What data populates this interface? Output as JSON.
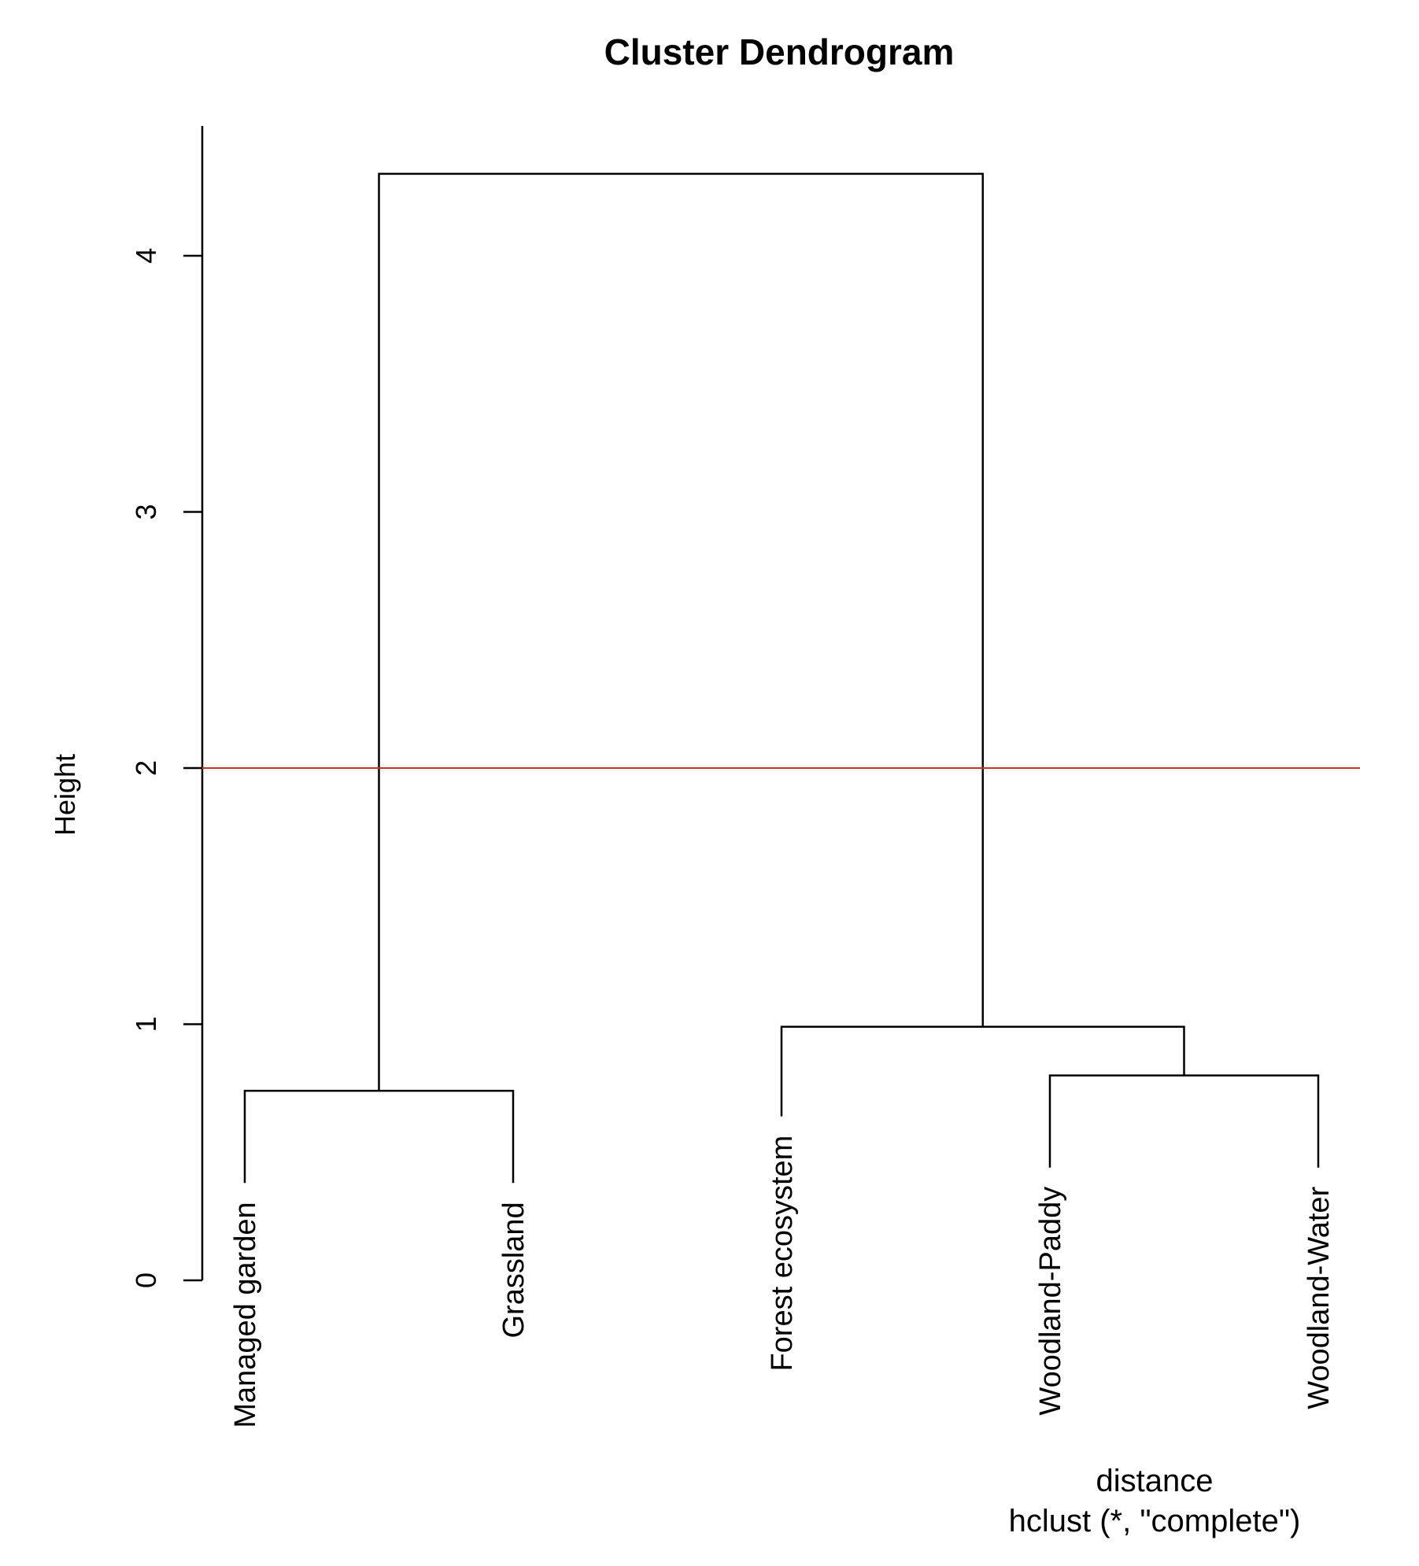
{
  "chart_data": {
    "type": "dendrogram",
    "title": "Cluster Dendrogram",
    "ylabel": "Height",
    "xlabel": "distance",
    "sub": "hclust (*, \"complete\")",
    "ylim": [
      0,
      4.5
    ],
    "yticks": [
      0,
      1,
      2,
      3,
      4
    ],
    "leaves": [
      "Managed garden",
      "Grassland",
      "Forest ecosystem",
      "Woodland-Paddy",
      "Woodland-Water"
    ],
    "leaf_heights": [
      0.38,
      0.38,
      0.64,
      0.44,
      0.44
    ],
    "merges": [
      {
        "left": "leaf:3",
        "right": "leaf:4",
        "height": 0.8
      },
      {
        "left": "leaf:0",
        "right": "leaf:1",
        "height": 0.74
      },
      {
        "left": "leaf:2",
        "right": "merge:0",
        "height": 0.99
      },
      {
        "left": "merge:1",
        "right": "merge:2",
        "height": 4.32
      }
    ],
    "cut_height": 2,
    "cut_color": "#c8302f",
    "grid": false
  }
}
